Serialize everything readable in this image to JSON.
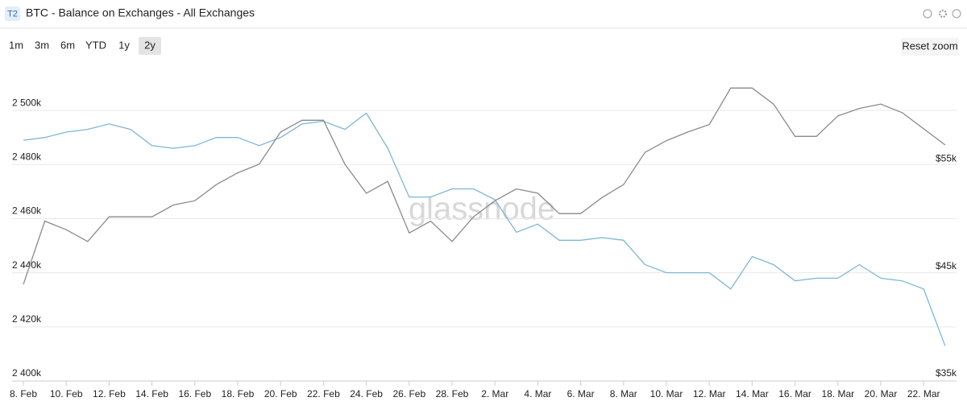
{
  "ui": {
    "badge": "T2",
    "range_buttons": [
      "1m",
      "3m",
      "6m",
      "YTD",
      "1y",
      "2y"
    ],
    "selected_range": 5,
    "reset_zoom": "Reset zoom",
    "watermark": "glassnode"
  },
  "chart_data": {
    "type": "line",
    "title": "BTC - Balance on Exchanges - All Exchanges",
    "categories": [
      "8. Feb",
      null,
      "10. Feb",
      null,
      "12. Feb",
      null,
      "14. Feb",
      null,
      "16. Feb",
      null,
      "18. Feb",
      null,
      "20. Feb",
      null,
      "22. Feb",
      null,
      "24. Feb",
      null,
      "26. Feb",
      null,
      "28. Feb",
      null,
      "2. Mar",
      null,
      "4. Mar",
      null,
      "6. Mar",
      null,
      "8. Mar",
      null,
      "10. Mar",
      null,
      "12. Mar",
      null,
      "14. Mar",
      null,
      "16. Mar",
      null,
      "18. Mar",
      null,
      "20. Mar",
      null,
      "22. Mar",
      null
    ],
    "series": [
      {
        "color": "#7db7d6",
        "values": [
          2489000,
          2490000,
          2492000,
          2493000,
          2495000,
          2493000,
          2487000,
          2486000,
          2487000,
          2490000,
          2490000,
          2487000,
          2490000,
          2495000,
          2496000,
          2493000,
          2499000,
          2486000,
          2468000,
          2468000,
          2471000,
          2471000,
          2467000,
          2455000,
          2458000,
          2452000,
          2452000,
          2453000,
          2452000,
          2443000,
          2440000,
          2440000,
          2440000,
          2434000,
          2446000,
          2443000,
          2437000,
          2438000,
          2438000,
          2443000,
          2438000,
          2437000,
          2434000,
          2413000
        ]
      },
      {
        "color": "#8a8a8a",
        "axis": "y2",
        "values": [
          44000,
          49900,
          49100,
          48000,
          50300,
          50300,
          50300,
          51400,
          51800,
          53300,
          54400,
          55200,
          58200,
          59300,
          59300,
          55200,
          52500,
          53600,
          48800,
          49900,
          48000,
          50300,
          51800,
          52900,
          52500,
          50600,
          50600,
          52100,
          53300,
          56300,
          57400,
          58200,
          58900,
          62300,
          62300,
          60800,
          57800,
          57800,
          59700,
          60400,
          60800,
          60000,
          58500,
          57000
        ]
      }
    ],
    "ylim": [
      2400000,
      2517000
    ],
    "yticks": [
      {
        "value": 2400000,
        "label": "2 400k"
      },
      {
        "value": 2420000,
        "label": "2 420k"
      },
      {
        "value": 2440000,
        "label": "2 440k"
      },
      {
        "value": 2460000,
        "label": "2 460k"
      },
      {
        "value": 2480000,
        "label": "2 480k"
      },
      {
        "value": 2500000,
        "label": "2 500k"
      }
    ],
    "y2lim": [
      35000,
      64500
    ],
    "y2ticks": [
      {
        "value": 35000,
        "label": "$35k"
      },
      {
        "value": 45000,
        "label": "$45k"
      },
      {
        "value": 55000,
        "label": "$55k"
      }
    ],
    "grid": true
  }
}
